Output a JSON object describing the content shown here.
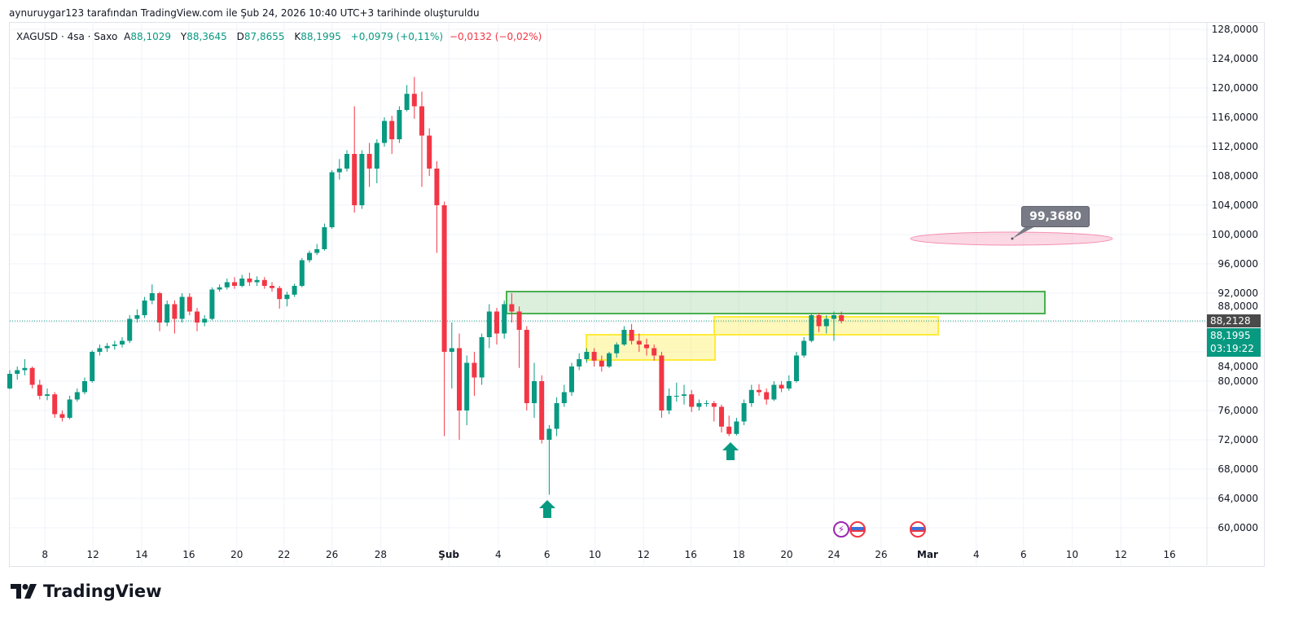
{
  "caption": "aynuruygar123 tarafından TradingView.com ile Şub 24, 2026 10:40 UTC+3 tarihinde oluşturuldu",
  "legend": {
    "symbol": "XAGUSD · 4sa · Saxo",
    "open_label": "A",
    "open": "88,1029",
    "high_label": "Y",
    "high": "88,3645",
    "low_label": "D",
    "low": "87,8655",
    "close_label": "K",
    "close": "88,1995",
    "change": "+0,0979 (+0,11%)",
    "change2": "−0,0132 (−0,02%)"
  },
  "price_labels": {
    "last": "88,2128",
    "current": "88,1995",
    "countdown": "03:19:22"
  },
  "callout_label": "99,3680",
  "logo_text": "TradingView",
  "colors": {
    "up": "#089981",
    "down": "#f23645",
    "zone_green": "#4caf50",
    "zone_yellow": "#ffeb3b",
    "ellipse": "#f48fb1"
  },
  "chart_data": {
    "type": "candlestick",
    "symbol": "XAGUSD",
    "interval": "4h",
    "ylim": [
      58,
      129
    ],
    "y_ticks": [
      128,
      124,
      120,
      116,
      112,
      108,
      104,
      100,
      96,
      92,
      88,
      84,
      80,
      76,
      72,
      68,
      64,
      60
    ],
    "y_tick_labels": [
      "128,0000",
      "124,0000",
      "120,0000",
      "116,0000",
      "112,0000",
      "108,0000",
      "104,0000",
      "100,0000",
      "96,0000",
      "92,0000",
      "88,0000",
      "84,0000",
      "80,0000",
      "76,0000",
      "72,0000",
      "68,0000",
      "64,0000",
      "60,0000"
    ],
    "x_ticks": [
      {
        "label": "8",
        "idx": 4.7
      },
      {
        "label": "12",
        "idx": 11.1
      },
      {
        "label": "14",
        "idx": 17.6
      },
      {
        "label": "16",
        "idx": 23.9
      },
      {
        "label": "20",
        "idx": 30.3
      },
      {
        "label": "22",
        "idx": 36.6
      },
      {
        "label": "26",
        "idx": 43.0
      },
      {
        "label": "28",
        "idx": 49.5
      },
      {
        "label": "Şub",
        "idx": 58.6
      },
      {
        "label": "4",
        "idx": 65.2
      },
      {
        "label": "6",
        "idx": 71.7
      },
      {
        "label": "10",
        "idx": 78.1
      },
      {
        "label": "12",
        "idx": 84.6
      },
      {
        "label": "16",
        "idx": 90.9
      },
      {
        "label": "18",
        "idx": 97.3
      },
      {
        "label": "20",
        "idx": 103.7
      },
      {
        "label": "24",
        "idx": 110.0
      },
      {
        "label": "26",
        "idx": 116.3
      },
      {
        "label": "Mar",
        "idx": 122.5
      },
      {
        "label": "4",
        "idx": 129.0
      },
      {
        "label": "6",
        "idx": 135.3
      },
      {
        "label": "10",
        "idx": 141.8
      },
      {
        "label": "12",
        "idx": 148.3
      },
      {
        "label": "16",
        "idx": 154.8
      }
    ],
    "candles": [
      [
        79.0,
        81.5,
        78.9,
        81.0
      ],
      [
        81.0,
        82.0,
        80.2,
        81.5
      ],
      [
        81.5,
        83.0,
        80.8,
        81.8
      ],
      [
        81.8,
        82.0,
        79.0,
        79.5
      ],
      [
        79.5,
        80.2,
        77.5,
        78.0
      ],
      [
        78.0,
        79.0,
        77.4,
        78.2
      ],
      [
        78.2,
        78.5,
        75.0,
        75.5
      ],
      [
        75.5,
        76.0,
        74.5,
        75.0
      ],
      [
        75.0,
        78.0,
        74.8,
        77.5
      ],
      [
        77.5,
        79.0,
        77.2,
        78.5
      ],
      [
        78.5,
        80.5,
        78.2,
        80.0
      ],
      [
        80.0,
        84.2,
        79.8,
        84.0
      ],
      [
        84.0,
        85.0,
        83.5,
        84.5
      ],
      [
        84.5,
        85.2,
        84.0,
        84.8
      ],
      [
        84.8,
        85.5,
        84.3,
        85.0
      ],
      [
        85.0,
        86.0,
        84.6,
        85.5
      ],
      [
        85.5,
        89.0,
        85.2,
        88.5
      ],
      [
        88.5,
        89.8,
        88.0,
        89.0
      ],
      [
        89.0,
        91.5,
        88.6,
        91.0
      ],
      [
        91.0,
        93.2,
        90.5,
        92.0
      ],
      [
        92.0,
        92.2,
        86.8,
        88.0
      ],
      [
        88.0,
        91.0,
        87.5,
        90.5
      ],
      [
        90.5,
        91.0,
        86.5,
        88.5
      ],
      [
        88.5,
        92.0,
        88.0,
        91.5
      ],
      [
        91.5,
        92.0,
        89.0,
        89.5
      ],
      [
        89.5,
        90.0,
        86.8,
        88.0
      ],
      [
        88.0,
        89.0,
        87.5,
        88.5
      ],
      [
        88.5,
        92.8,
        88.3,
        92.5
      ],
      [
        92.5,
        93.2,
        92.2,
        92.8
      ],
      [
        92.8,
        94.0,
        92.5,
        93.5
      ],
      [
        93.5,
        94.2,
        92.6,
        93.0
      ],
      [
        93.0,
        94.5,
        92.8,
        94.0
      ],
      [
        94.0,
        94.8,
        93.0,
        93.5
      ],
      [
        93.5,
        94.3,
        93.0,
        93.8
      ],
      [
        93.8,
        94.2,
        92.6,
        93.0
      ],
      [
        93.0,
        93.5,
        92.2,
        92.7
      ],
      [
        92.7,
        93.0,
        89.9,
        91.2
      ],
      [
        91.2,
        92.2,
        90.2,
        91.8
      ],
      [
        91.8,
        93.3,
        91.5,
        93.0
      ],
      [
        93.0,
        96.8,
        92.8,
        96.5
      ],
      [
        96.5,
        97.8,
        96.2,
        97.5
      ],
      [
        97.5,
        98.7,
        97.2,
        98.0
      ],
      [
        98.0,
        101.5,
        97.8,
        101.0
      ],
      [
        101.0,
        108.8,
        100.8,
        108.5
      ],
      [
        108.5,
        110.3,
        107.5,
        109.0
      ],
      [
        109.0,
        111.5,
        108.6,
        111.0
      ],
      [
        111.0,
        117.5,
        103.0,
        104.0
      ],
      [
        104.0,
        111.5,
        103.5,
        111.0
      ],
      [
        111.0,
        112.5,
        106.5,
        109.0
      ],
      [
        109.0,
        113.0,
        107.0,
        112.5
      ],
      [
        112.5,
        116.0,
        112.0,
        115.5
      ],
      [
        115.5,
        116.2,
        111.0,
        113.0
      ],
      [
        113.0,
        117.5,
        112.5,
        117.0
      ],
      [
        117.0,
        120.4,
        116.8,
        119.2
      ],
      [
        119.2,
        121.5,
        115.8,
        117.5
      ],
      [
        117.5,
        119.5,
        106.5,
        113.5
      ],
      [
        113.5,
        114.5,
        108.0,
        109.0
      ],
      [
        109.0,
        110.0,
        97.5,
        104.0
      ],
      [
        104.0,
        104.5,
        72.5,
        84.0
      ],
      [
        84.0,
        88.0,
        79.0,
        84.5
      ],
      [
        84.5,
        86.5,
        72.0,
        76.0
      ],
      [
        76.0,
        83.5,
        74.0,
        82.5
      ],
      [
        82.5,
        84.0,
        78.0,
        80.5
      ],
      [
        80.5,
        86.5,
        79.5,
        86.0
      ],
      [
        86.0,
        90.5,
        84.5,
        89.5
      ],
      [
        89.5,
        90.0,
        85.0,
        86.5
      ],
      [
        86.5,
        91.0,
        85.8,
        90.5
      ],
      [
        90.5,
        92.0,
        88.0,
        89.5
      ],
      [
        89.5,
        90.2,
        81.8,
        87.0
      ],
      [
        87.0,
        87.5,
        76.0,
        77.0
      ],
      [
        77.0,
        82.5,
        75.0,
        80.0
      ],
      [
        80.0,
        80.8,
        71.5,
        72.0
      ],
      [
        72.0,
        74.0,
        64.5,
        73.5
      ],
      [
        73.5,
        77.8,
        72.5,
        77.0
      ],
      [
        77.0,
        79.5,
        76.5,
        78.5
      ],
      [
        78.5,
        82.5,
        78.0,
        82.0
      ],
      [
        82.0,
        83.8,
        81.5,
        83.0
      ],
      [
        83.0,
        84.5,
        82.5,
        84.0
      ],
      [
        84.0,
        84.5,
        82.0,
        82.8
      ],
      [
        82.8,
        83.5,
        81.3,
        82.0
      ],
      [
        82.0,
        84.0,
        81.8,
        83.8
      ],
      [
        83.8,
        85.3,
        83.2,
        85.0
      ],
      [
        85.0,
        87.5,
        84.8,
        87.0
      ],
      [
        87.0,
        87.8,
        85.0,
        85.5
      ],
      [
        85.5,
        86.5,
        84.0,
        85.0
      ],
      [
        85.0,
        85.8,
        83.5,
        84.5
      ],
      [
        84.5,
        85.0,
        82.8,
        83.5
      ],
      [
        83.5,
        84.0,
        75.0,
        76.0
      ],
      [
        76.0,
        79.0,
        75.5,
        78.0
      ],
      [
        78.0,
        79.8,
        77.2,
        78.0
      ],
      [
        78.0,
        79.5,
        76.8,
        78.2
      ],
      [
        78.2,
        78.8,
        75.8,
        76.5
      ],
      [
        76.5,
        77.5,
        76.0,
        77.0
      ],
      [
        77.0,
        77.4,
        76.5,
        77.0
      ],
      [
        77.0,
        77.3,
        74.5,
        76.5
      ],
      [
        76.5,
        76.8,
        73.0,
        73.8
      ],
      [
        73.8,
        75.3,
        72.5,
        72.8
      ],
      [
        72.8,
        75.0,
        72.6,
        74.5
      ],
      [
        74.5,
        77.5,
        74.0,
        77.0
      ],
      [
        77.0,
        79.5,
        76.5,
        78.8
      ],
      [
        78.8,
        79.6,
        78.0,
        78.5
      ],
      [
        78.5,
        79.0,
        76.8,
        77.5
      ],
      [
        77.5,
        80.0,
        77.3,
        79.5
      ],
      [
        79.5,
        80.0,
        78.5,
        79.0
      ],
      [
        79.0,
        80.8,
        78.7,
        80.0
      ],
      [
        80.0,
        84.0,
        79.8,
        83.5
      ],
      [
        83.5,
        86.0,
        83.2,
        85.5
      ],
      [
        85.5,
        89.2,
        85.3,
        89.0
      ],
      [
        89.0,
        89.3,
        86.7,
        87.5
      ],
      [
        87.5,
        89.0,
        86.5,
        88.5
      ],
      [
        88.5,
        89.5,
        85.5,
        89.0
      ],
      [
        89.0,
        89.5,
        87.9,
        88.2
      ]
    ],
    "last_price": 88.2128,
    "current_price": 88.1995,
    "annotations": [
      "support-resistance zones",
      "target ellipse 99,3680",
      "buy arrows"
    ]
  }
}
